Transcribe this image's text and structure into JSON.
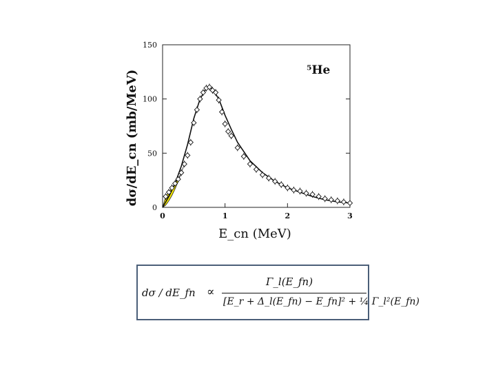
{
  "chart_data": {
    "type": "scatter",
    "annotation": "⁵He",
    "xlabel": "E_cn (MeV)",
    "ylabel": "dσ/dE_cn   (mb/MeV)",
    "xlim": [
      0,
      3
    ],
    "ylim": [
      0,
      150
    ],
    "x_ticks": [
      "0",
      "1",
      "2",
      "3"
    ],
    "y_ticks": [
      "0",
      "50",
      "100",
      "150"
    ],
    "grid": false,
    "highlight_color": "#f5e800",
    "series": [
      {
        "kind": "points",
        "x": [
          0.05,
          0.1,
          0.15,
          0.2,
          0.25,
          0.3,
          0.35,
          0.4,
          0.45,
          0.5,
          0.55,
          0.6,
          0.65,
          0.7,
          0.75,
          0.8,
          0.85,
          0.9,
          0.95,
          1.0,
          1.05,
          1.1,
          1.2,
          1.3,
          1.4,
          1.5,
          1.6,
          1.7,
          1.8,
          1.9,
          2.0,
          2.1,
          2.2,
          2.3,
          2.4,
          2.5,
          2.6,
          2.7,
          2.8,
          2.9,
          3.0
        ],
        "y": [
          10,
          14,
          18,
          22,
          26,
          32,
          40,
          48,
          60,
          78,
          90,
          100,
          106,
          110,
          111,
          108,
          106,
          99,
          88,
          77,
          70,
          66,
          55,
          47,
          40,
          35,
          30,
          27,
          24,
          21,
          18,
          16,
          15,
          13,
          12,
          10,
          8,
          7,
          6,
          5,
          4
        ]
      },
      {
        "kind": "fit",
        "x": [
          0,
          0.1,
          0.2,
          0.3,
          0.4,
          0.5,
          0.6,
          0.7,
          0.75,
          0.8,
          0.9,
          1.0,
          1.1,
          1.2,
          1.4,
          1.6,
          1.8,
          2.0,
          2.2,
          2.4,
          2.6,
          2.8,
          3.0
        ],
        "y": [
          0,
          10,
          22,
          38,
          58,
          82,
          100,
          110,
          111,
          109,
          100,
          85,
          72,
          60,
          43,
          32,
          24,
          18,
          14,
          10,
          7,
          5,
          4
        ]
      },
      {
        "kind": "lower-edge",
        "x": [
          0,
          0.05,
          0.1,
          0.15,
          0.2,
          0.25,
          0.3,
          0.35
        ],
        "y": [
          0,
          2,
          6,
          11,
          17,
          24,
          32,
          40
        ]
      }
    ]
  },
  "formula": {
    "lhs": "dσ / dE_fn",
    "prop": "∝",
    "numerator": "Γ_l(E_fn)",
    "denominator": "[E_r + Δ_l(E_fn) − E_fn]² + ¼ Γ_l²(E_fn)"
  }
}
